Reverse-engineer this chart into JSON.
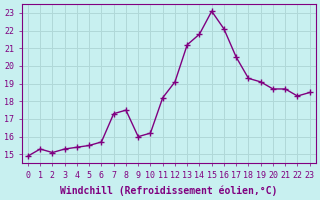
{
  "x": [
    0,
    1,
    2,
    3,
    4,
    5,
    6,
    7,
    8,
    9,
    10,
    11,
    12,
    13,
    14,
    15,
    16,
    17,
    18,
    19,
    20,
    21,
    22,
    23
  ],
  "y": [
    14.9,
    15.3,
    15.1,
    15.3,
    15.4,
    15.5,
    15.7,
    17.3,
    17.5,
    16.0,
    16.2,
    18.2,
    19.1,
    21.2,
    21.8,
    23.1,
    22.1,
    20.5,
    19.3,
    19.1,
    18.7,
    18.7,
    18.3,
    18.5
  ],
  "line_color": "#800080",
  "marker": "+",
  "marker_size": 4,
  "bg_color": "#c8f0f0",
  "grid_color": "#b0d8d8",
  "xlabel": "Windchill (Refroidissement éolien,°C)",
  "ylabel": "",
  "xlim": [
    -0.5,
    23.5
  ],
  "ylim": [
    14.5,
    23.5
  ],
  "yticks": [
    15,
    16,
    17,
    18,
    19,
    20,
    21,
    22,
    23
  ],
  "xticks": [
    0,
    1,
    2,
    3,
    4,
    5,
    6,
    7,
    8,
    9,
    10,
    11,
    12,
    13,
    14,
    15,
    16,
    17,
    18,
    19,
    20,
    21,
    22,
    23
  ],
  "tick_label_color": "#800080",
  "tick_label_size": 6,
  "xlabel_size": 7,
  "axis_color": "#800080"
}
